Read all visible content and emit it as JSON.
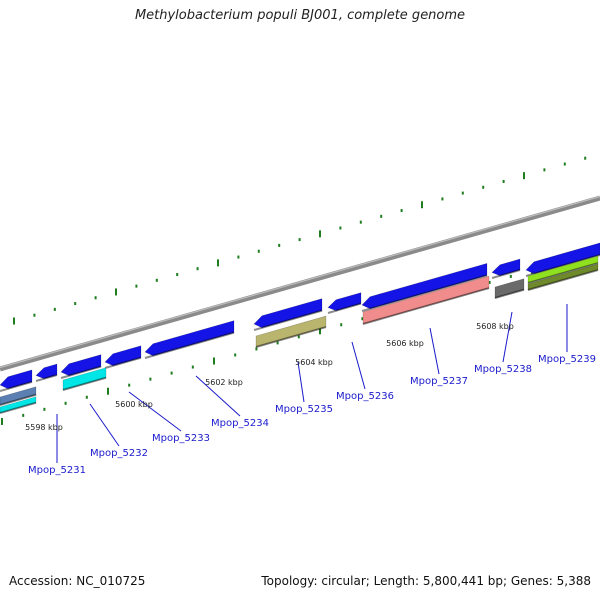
{
  "title": "Methylobacterium populi BJ001, complete genome",
  "footer": {
    "accession": "Accession: NC_010725",
    "summary": "Topology: circular; Length: 5,800,441 bp; Genes: 5,388"
  },
  "colors": {
    "backbone": "#8a8a8a",
    "ticks": "#1e7d1e",
    "gene_default": "#1414e6",
    "label": "#1a1acc"
  },
  "tick_labels": [
    "5598 kbp",
    "5600 kbp",
    "5602 kbp",
    "5604 kbp",
    "5606 kbp",
    "5608 kbp"
  ],
  "genes": [
    {
      "name": "Mpop_5231",
      "color": "#5a7fb0"
    },
    {
      "name": "Mpop_5232",
      "color": "#00e6e6"
    },
    {
      "name": "Mpop_5233",
      "color": "#1414e6"
    },
    {
      "name": "Mpop_5234",
      "color": "#1414e6"
    },
    {
      "name": "Mpop_5235",
      "color": "#b9b46e"
    },
    {
      "name": "Mpop_5236",
      "color": "#1414e6"
    },
    {
      "name": "Mpop_5237",
      "color": "#f08c8c"
    },
    {
      "name": "Mpop_5238",
      "color": "#6a6a6a"
    },
    {
      "name": "Mpop_5239",
      "color": "#8fe01e"
    }
  ]
}
